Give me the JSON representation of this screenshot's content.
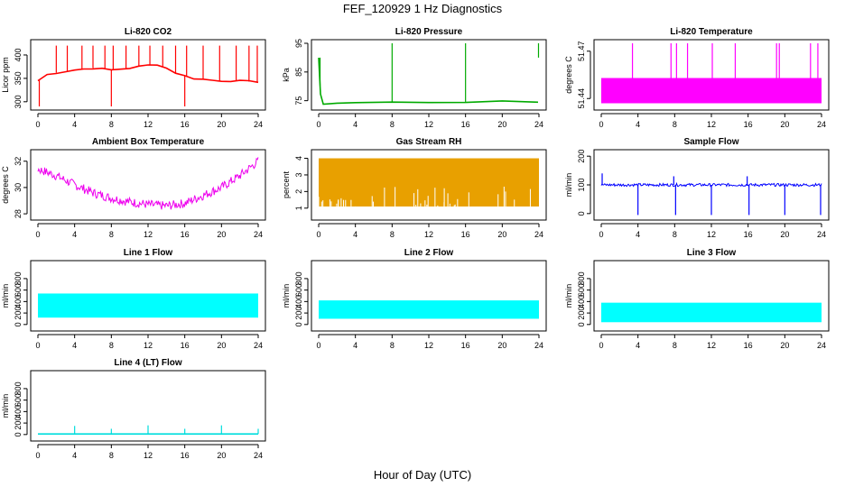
{
  "title": "FEF_120929  1 Hz Diagnostics",
  "xlabel": "Hour of Day (UTC)",
  "chart_data": [
    {
      "type": "line",
      "title": "Li-820 CO2",
      "ylabel": "Licor ppm",
      "color": "#ff0000",
      "xlim": [
        0,
        24
      ],
      "xticks": [
        0,
        4,
        8,
        12,
        16,
        20,
        24
      ],
      "ylim": [
        290,
        425
      ],
      "yticks": [
        300,
        350,
        400
      ],
      "series": [
        {
          "x": [
            0,
            1,
            2,
            3,
            4,
            5,
            6,
            7,
            8,
            9,
            10,
            11,
            12,
            13,
            14,
            15,
            16,
            17,
            18,
            19,
            20,
            21,
            22,
            23,
            24
          ],
          "y": [
            345,
            358,
            362,
            365,
            368,
            370,
            372,
            370,
            368,
            370,
            372,
            375,
            378,
            380,
            372,
            362,
            355,
            350,
            348,
            346,
            345,
            345,
            344,
            343,
            343
          ]
        }
      ],
      "spikes": [
        {
          "x": 0.15,
          "y": 290
        },
        {
          "x": 2.0,
          "y": 420
        },
        {
          "x": 3.2,
          "y": 420
        },
        {
          "x": 4.8,
          "y": 420
        },
        {
          "x": 6.0,
          "y": 420
        },
        {
          "x": 7.3,
          "y": 420
        },
        {
          "x": 8.0,
          "y": 290
        },
        {
          "x": 8.2,
          "y": 420
        },
        {
          "x": 9.6,
          "y": 420
        },
        {
          "x": 11.0,
          "y": 420
        },
        {
          "x": 12.2,
          "y": 420
        },
        {
          "x": 13.6,
          "y": 420
        },
        {
          "x": 15.0,
          "y": 420
        },
        {
          "x": 16.0,
          "y": 290
        },
        {
          "x": 16.2,
          "y": 420
        },
        {
          "x": 18.0,
          "y": 420
        },
        {
          "x": 19.8,
          "y": 420
        },
        {
          "x": 21.6,
          "y": 420
        },
        {
          "x": 23.0,
          "y": 420
        },
        {
          "x": 23.9,
          "y": 420
        }
      ]
    },
    {
      "type": "line",
      "title": "Li-820 Pressure",
      "ylabel": "kPa",
      "color": "#00aa00",
      "xlim": [
        0,
        24
      ],
      "xticks": [
        0,
        4,
        8,
        12,
        16,
        20,
        24
      ],
      "ylim": [
        73,
        95
      ],
      "yticks": [
        75,
        85,
        95
      ],
      "series": [
        {
          "x": [
            0,
            0.2,
            0.5,
            2,
            4,
            8,
            12,
            16,
            20,
            23.9
          ],
          "y": [
            90,
            77,
            74,
            74.2,
            74.3,
            74.4,
            74.5,
            74.6,
            74.6,
            74.5
          ]
        }
      ],
      "spikes": [
        {
          "x": 0.15,
          "y": 90
        },
        {
          "x": 8.0,
          "y": 95
        },
        {
          "x": 16.0,
          "y": 95
        },
        {
          "x": 23.95,
          "y": 95
        }
      ]
    },
    {
      "type": "area",
      "title": "Li-820 Temperature",
      "ylabel": "degrees C",
      "color": "#ff00ff",
      "xlim": [
        0,
        24
      ],
      "xticks": [
        0,
        4,
        8,
        12,
        16,
        20,
        24
      ],
      "ylim": [
        51.435,
        51.475
      ],
      "yticks": [
        51.44,
        51.47
      ],
      "band": [
        51.437,
        51.453
      ],
      "spikes": [
        {
          "x": 3.4,
          "y": 51.475
        },
        {
          "x": 7.6,
          "y": 51.475
        },
        {
          "x": 8.2,
          "y": 51.475
        },
        {
          "x": 9.4,
          "y": 51.475
        },
        {
          "x": 12.1,
          "y": 51.475
        },
        {
          "x": 14.6,
          "y": 51.475
        },
        {
          "x": 19.1,
          "y": 51.475
        },
        {
          "x": 19.4,
          "y": 51.475
        },
        {
          "x": 22.8,
          "y": 51.475
        },
        {
          "x": 23.6,
          "y": 51.475
        }
      ]
    },
    {
      "type": "line",
      "title": "Ambient Box Temperature",
      "ylabel": "degrees C",
      "color": "#ee00ee",
      "xlim": [
        0,
        24
      ],
      "xticks": [
        0,
        4,
        8,
        12,
        16,
        20,
        24
      ],
      "ylim": [
        27.8,
        32.6
      ],
      "yticks": [
        28,
        30,
        32
      ],
      "series": [
        {
          "x": [
            0,
            2,
            4,
            6,
            8,
            10,
            12,
            14,
            16,
            18,
            20,
            22,
            24
          ],
          "y": [
            31.4,
            30.9,
            30.2,
            29.6,
            29.2,
            28.9,
            28.7,
            28.6,
            28.8,
            29.4,
            30.0,
            30.9,
            32.0
          ]
        }
      ],
      "noise": 0.35
    },
    {
      "type": "area",
      "title": "Gas Stream RH",
      "ylabel": "percent",
      "color": "#e8a000",
      "xlim": [
        0,
        24
      ],
      "xticks": [
        0,
        4,
        8,
        12,
        16,
        20,
        24
      ],
      "ylim": [
        0.5,
        4.3
      ],
      "yticks": [
        1,
        2,
        3,
        4
      ],
      "band": [
        1.1,
        4.0
      ]
    },
    {
      "type": "line",
      "title": "Sample Flow",
      "ylabel": "ml/min",
      "color": "#0000ff",
      "xlim": [
        0,
        24
      ],
      "xticks": [
        0,
        4,
        8,
        12,
        16,
        20,
        24
      ],
      "ylim": [
        -10,
        210
      ],
      "yticks": [
        0,
        100,
        200
      ],
      "series": [
        {
          "x": [
            0,
            24
          ],
          "y": [
            100,
            100
          ]
        }
      ],
      "noise": 5,
      "spikes": [
        {
          "x": 0.1,
          "y": 140
        },
        {
          "x": 4.0,
          "y": -5
        },
        {
          "x": 7.9,
          "y": 130
        },
        {
          "x": 8.1,
          "y": -5
        },
        {
          "x": 12.0,
          "y": -5
        },
        {
          "x": 15.9,
          "y": 130
        },
        {
          "x": 16.1,
          "y": -5
        },
        {
          "x": 20.0,
          "y": -5
        },
        {
          "x": 23.9,
          "y": -5
        }
      ]
    },
    {
      "type": "area",
      "title": "Line 1 Flow",
      "ylabel": "ml/min",
      "color": "#00ffff",
      "xlim": [
        0,
        24
      ],
      "xticks": [
        0,
        4,
        8,
        12,
        16,
        20,
        24
      ],
      "ylim": [
        -50,
        1050
      ],
      "yticks": [
        0,
        200,
        400,
        600,
        800
      ],
      "band": [
        120,
        540
      ]
    },
    {
      "type": "area",
      "title": "Line 2 Flow",
      "ylabel": "ml/min",
      "color": "#00ffff",
      "xlim": [
        0,
        24
      ],
      "xticks": [
        0,
        4,
        8,
        12,
        16,
        20,
        24
      ],
      "ylim": [
        -50,
        1050
      ],
      "yticks": [
        0,
        200,
        400,
        600,
        800
      ],
      "band": [
        100,
        420
      ]
    },
    {
      "type": "area",
      "title": "Line 3 Flow",
      "ylabel": "ml/min",
      "color": "#00ffff",
      "xlim": [
        0,
        24
      ],
      "xticks": [
        0,
        4,
        8,
        12,
        16,
        20,
        24
      ],
      "ylim": [
        -50,
        1050
      ],
      "yticks": [
        0,
        200,
        400,
        600,
        800
      ],
      "band": [
        40,
        380
      ]
    },
    {
      "type": "line",
      "title": "Line 4 (LT) Flow",
      "ylabel": "ml/min",
      "color": "#00dddd",
      "xlim": [
        0,
        24
      ],
      "xticks": [
        0,
        4,
        8,
        12,
        16,
        20,
        24
      ],
      "ylim": [
        -50,
        1050
      ],
      "yticks": [
        0,
        200,
        400,
        600,
        800
      ],
      "series": [
        {
          "x": [
            0,
            24
          ],
          "y": [
            10,
            10
          ]
        }
      ],
      "spikes": [
        {
          "x": 4.0,
          "y": 150
        },
        {
          "x": 8.0,
          "y": 100
        },
        {
          "x": 12.0,
          "y": 160
        },
        {
          "x": 16.0,
          "y": 100
        },
        {
          "x": 20.0,
          "y": 160
        },
        {
          "x": 24.0,
          "y": 100
        }
      ]
    }
  ]
}
